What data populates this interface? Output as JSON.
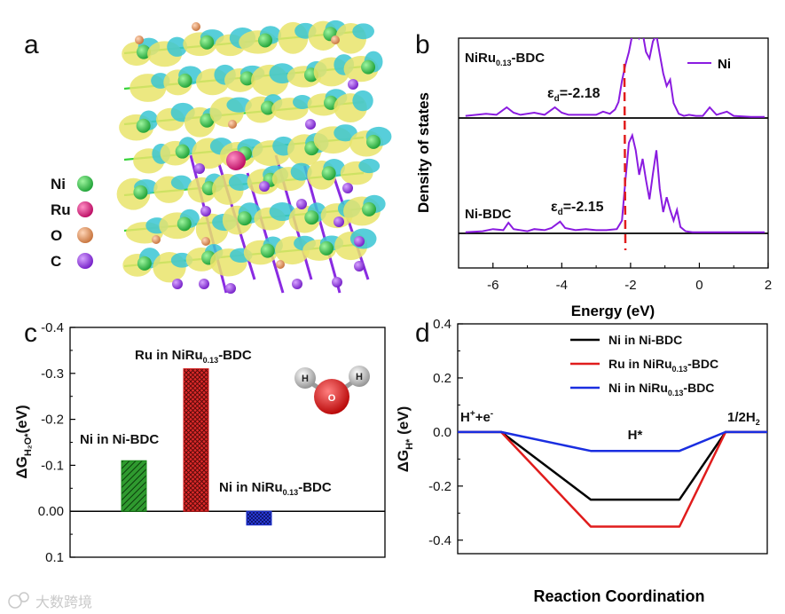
{
  "panel_labels": {
    "a": "a",
    "b": "b",
    "c": "c",
    "d": "d"
  },
  "watermark": "大数跨境",
  "panel_a": {
    "legend": [
      {
        "label": "Ni",
        "color": "#2ecc40"
      },
      {
        "label": "Ru",
        "color": "#e0197d"
      },
      {
        "label": "O",
        "color": "#e3a073"
      },
      {
        "label": "C",
        "color": "#9b30e0"
      }
    ],
    "colors": {
      "charge_accum": "#e9e46b",
      "charge_depl": "#39c6d4",
      "ni_bond": "#39d33a",
      "c_bond": "#8a2be2"
    }
  },
  "chart_data": [
    {
      "panel": "b",
      "type": "line",
      "xlabel": "Energy (eV)",
      "ylabel": "Density of states",
      "xlim": [
        -7,
        2
      ],
      "xticks": [
        "-6",
        "-4",
        "-2",
        "0",
        "2"
      ],
      "legend": "Ni",
      "line_color": "#8a1be0",
      "dband_marker_color": "#e11d1d",
      "series": [
        {
          "name": "NiRu0.13-BDC",
          "label_base": "NiRu",
          "label_sub": "0.13",
          "label_tail": "-BDC",
          "d_band_center": -2.18,
          "eps_text": "=-2.18",
          "x": [
            -6.8,
            -6.2,
            -5.9,
            -5.6,
            -5.4,
            -5.2,
            -4.8,
            -4.5,
            -4.2,
            -4.0,
            -3.8,
            -3.5,
            -3.2,
            -3.0,
            -2.8,
            -2.6,
            -2.45,
            -2.35,
            -2.25,
            -2.15,
            -2.05,
            -1.95,
            -1.85,
            -1.75,
            -1.65,
            -1.55,
            -1.45,
            -1.35,
            -1.25,
            -1.15,
            -1.05,
            -0.95,
            -0.85,
            -0.75,
            -0.6,
            -0.45,
            -0.3,
            -0.1,
            0.1,
            0.3,
            0.5,
            0.8,
            1.0,
            1.5,
            1.9
          ],
          "y": [
            0.02,
            0.04,
            0.03,
            0.1,
            0.05,
            0.03,
            0.05,
            0.03,
            0.1,
            0.05,
            0.03,
            0.03,
            0.03,
            0.03,
            0.06,
            0.04,
            0.08,
            0.15,
            0.35,
            0.5,
            0.62,
            0.78,
            0.9,
            0.75,
            0.8,
            0.62,
            0.56,
            0.72,
            0.78,
            0.6,
            0.42,
            0.3,
            0.36,
            0.14,
            0.04,
            0.02,
            0.03,
            0.02,
            0.02,
            0.1,
            0.03,
            0.06,
            0.02,
            0.01,
            0.01
          ]
        },
        {
          "name": "Ni-BDC",
          "label_base": "Ni-BDC",
          "d_band_center": -2.15,
          "eps_text": "=-2.15",
          "x": [
            -6.8,
            -6.3,
            -6.0,
            -5.7,
            -5.55,
            -5.4,
            -5.0,
            -4.8,
            -4.5,
            -4.3,
            -4.05,
            -3.9,
            -3.6,
            -3.3,
            -3.0,
            -2.7,
            -2.4,
            -2.25,
            -2.15,
            -2.05,
            -1.95,
            -1.85,
            -1.75,
            -1.65,
            -1.55,
            -1.45,
            -1.35,
            -1.25,
            -1.15,
            -1.05,
            -0.95,
            -0.85,
            -0.75,
            -0.65,
            -0.55,
            -0.4,
            -0.2,
            0.0,
            0.5,
            1.0,
            1.9
          ],
          "y": [
            0.01,
            0.02,
            0.04,
            0.03,
            0.1,
            0.04,
            0.02,
            0.04,
            0.03,
            0.05,
            0.11,
            0.05,
            0.03,
            0.04,
            0.03,
            0.03,
            0.04,
            0.12,
            0.5,
            0.85,
            0.92,
            0.78,
            0.55,
            0.7,
            0.5,
            0.32,
            0.56,
            0.78,
            0.42,
            0.2,
            0.34,
            0.22,
            0.12,
            0.22,
            0.06,
            0.02,
            0.01,
            0.01,
            0.01,
            0.01,
            0.01
          ]
        }
      ]
    },
    {
      "panel": "c",
      "type": "bar",
      "ylabel_main": "ΔG",
      "ylabel_sub": "H₂O*",
      "ylabel_tail": "(eV)",
      "ylim": [
        0.1,
        -0.4
      ],
      "yticks": [
        "-0.4",
        "-0.3",
        "-0.2",
        "-0.1",
        "0.00",
        "0.1"
      ],
      "ytick_values": [
        -0.4,
        -0.3,
        -0.2,
        -0.1,
        0.0,
        0.1
      ],
      "categories": [
        "Ni in Ni-BDC",
        "Ru in NiRu0.13-BDC",
        "Ni in NiRu0.13-BDC"
      ],
      "label_parts": [
        {
          "base": "Ni in Ni-BDC",
          "sub": "",
          "tail": ""
        },
        {
          "base": "Ru in NiRu",
          "sub": "0.13",
          "tail": "-BDC"
        },
        {
          "base": "Ni in NiRu",
          "sub": "0.13",
          "tail": "-BDC"
        }
      ],
      "values": [
        -0.11,
        -0.31,
        0.03
      ],
      "colors": [
        "#1b8a1b",
        "#d21a1a",
        "#1a2fd2"
      ],
      "inset": {
        "atom_h": "H",
        "atom_o": "O"
      }
    },
    {
      "panel": "d",
      "type": "line",
      "xlabel": "Reaction Coordination",
      "ylabel_main": "ΔG",
      "ylabel_sub": "H*",
      "ylabel_tail": " (eV)",
      "ylim": [
        -0.45,
        0.4
      ],
      "yticks": [
        "0.4",
        "0.2",
        "0.0",
        "-0.2",
        "-0.4"
      ],
      "ytick_values": [
        0.4,
        0.2,
        0.0,
        -0.2,
        -0.4
      ],
      "annotations": {
        "start_base": "H",
        "start_sup1": "+",
        "start_mid": "+e",
        "start_sup2": "-",
        "mid": "H*",
        "end_base": "1/2H",
        "end_sub": "2"
      },
      "series": [
        {
          "name": "Ni in Ni-BDC",
          "label_base": "Ni in Ni-BDC",
          "label_sub": "",
          "label_tail": "",
          "color": "#000000",
          "values": [
            0,
            0,
            -0.25,
            -0.25,
            0,
            0
          ]
        },
        {
          "name": "Ru in NiRu0.13-BDC",
          "label_base": "Ru in NiRu",
          "label_sub": "0.13",
          "label_tail": "-BDC",
          "color": "#e01c1c",
          "values": [
            0,
            0,
            -0.35,
            -0.35,
            0,
            0
          ]
        },
        {
          "name": "Ni in NiRu0.13-BDC",
          "label_base": "Ni in NiRu",
          "label_sub": "0.13",
          "label_tail": "-BDC",
          "color": "#1a2ee0",
          "values": [
            0,
            0,
            -0.07,
            -0.07,
            0,
            0
          ]
        }
      ],
      "x_steps": [
        0,
        1,
        2,
        3,
        4,
        5
      ]
    }
  ]
}
